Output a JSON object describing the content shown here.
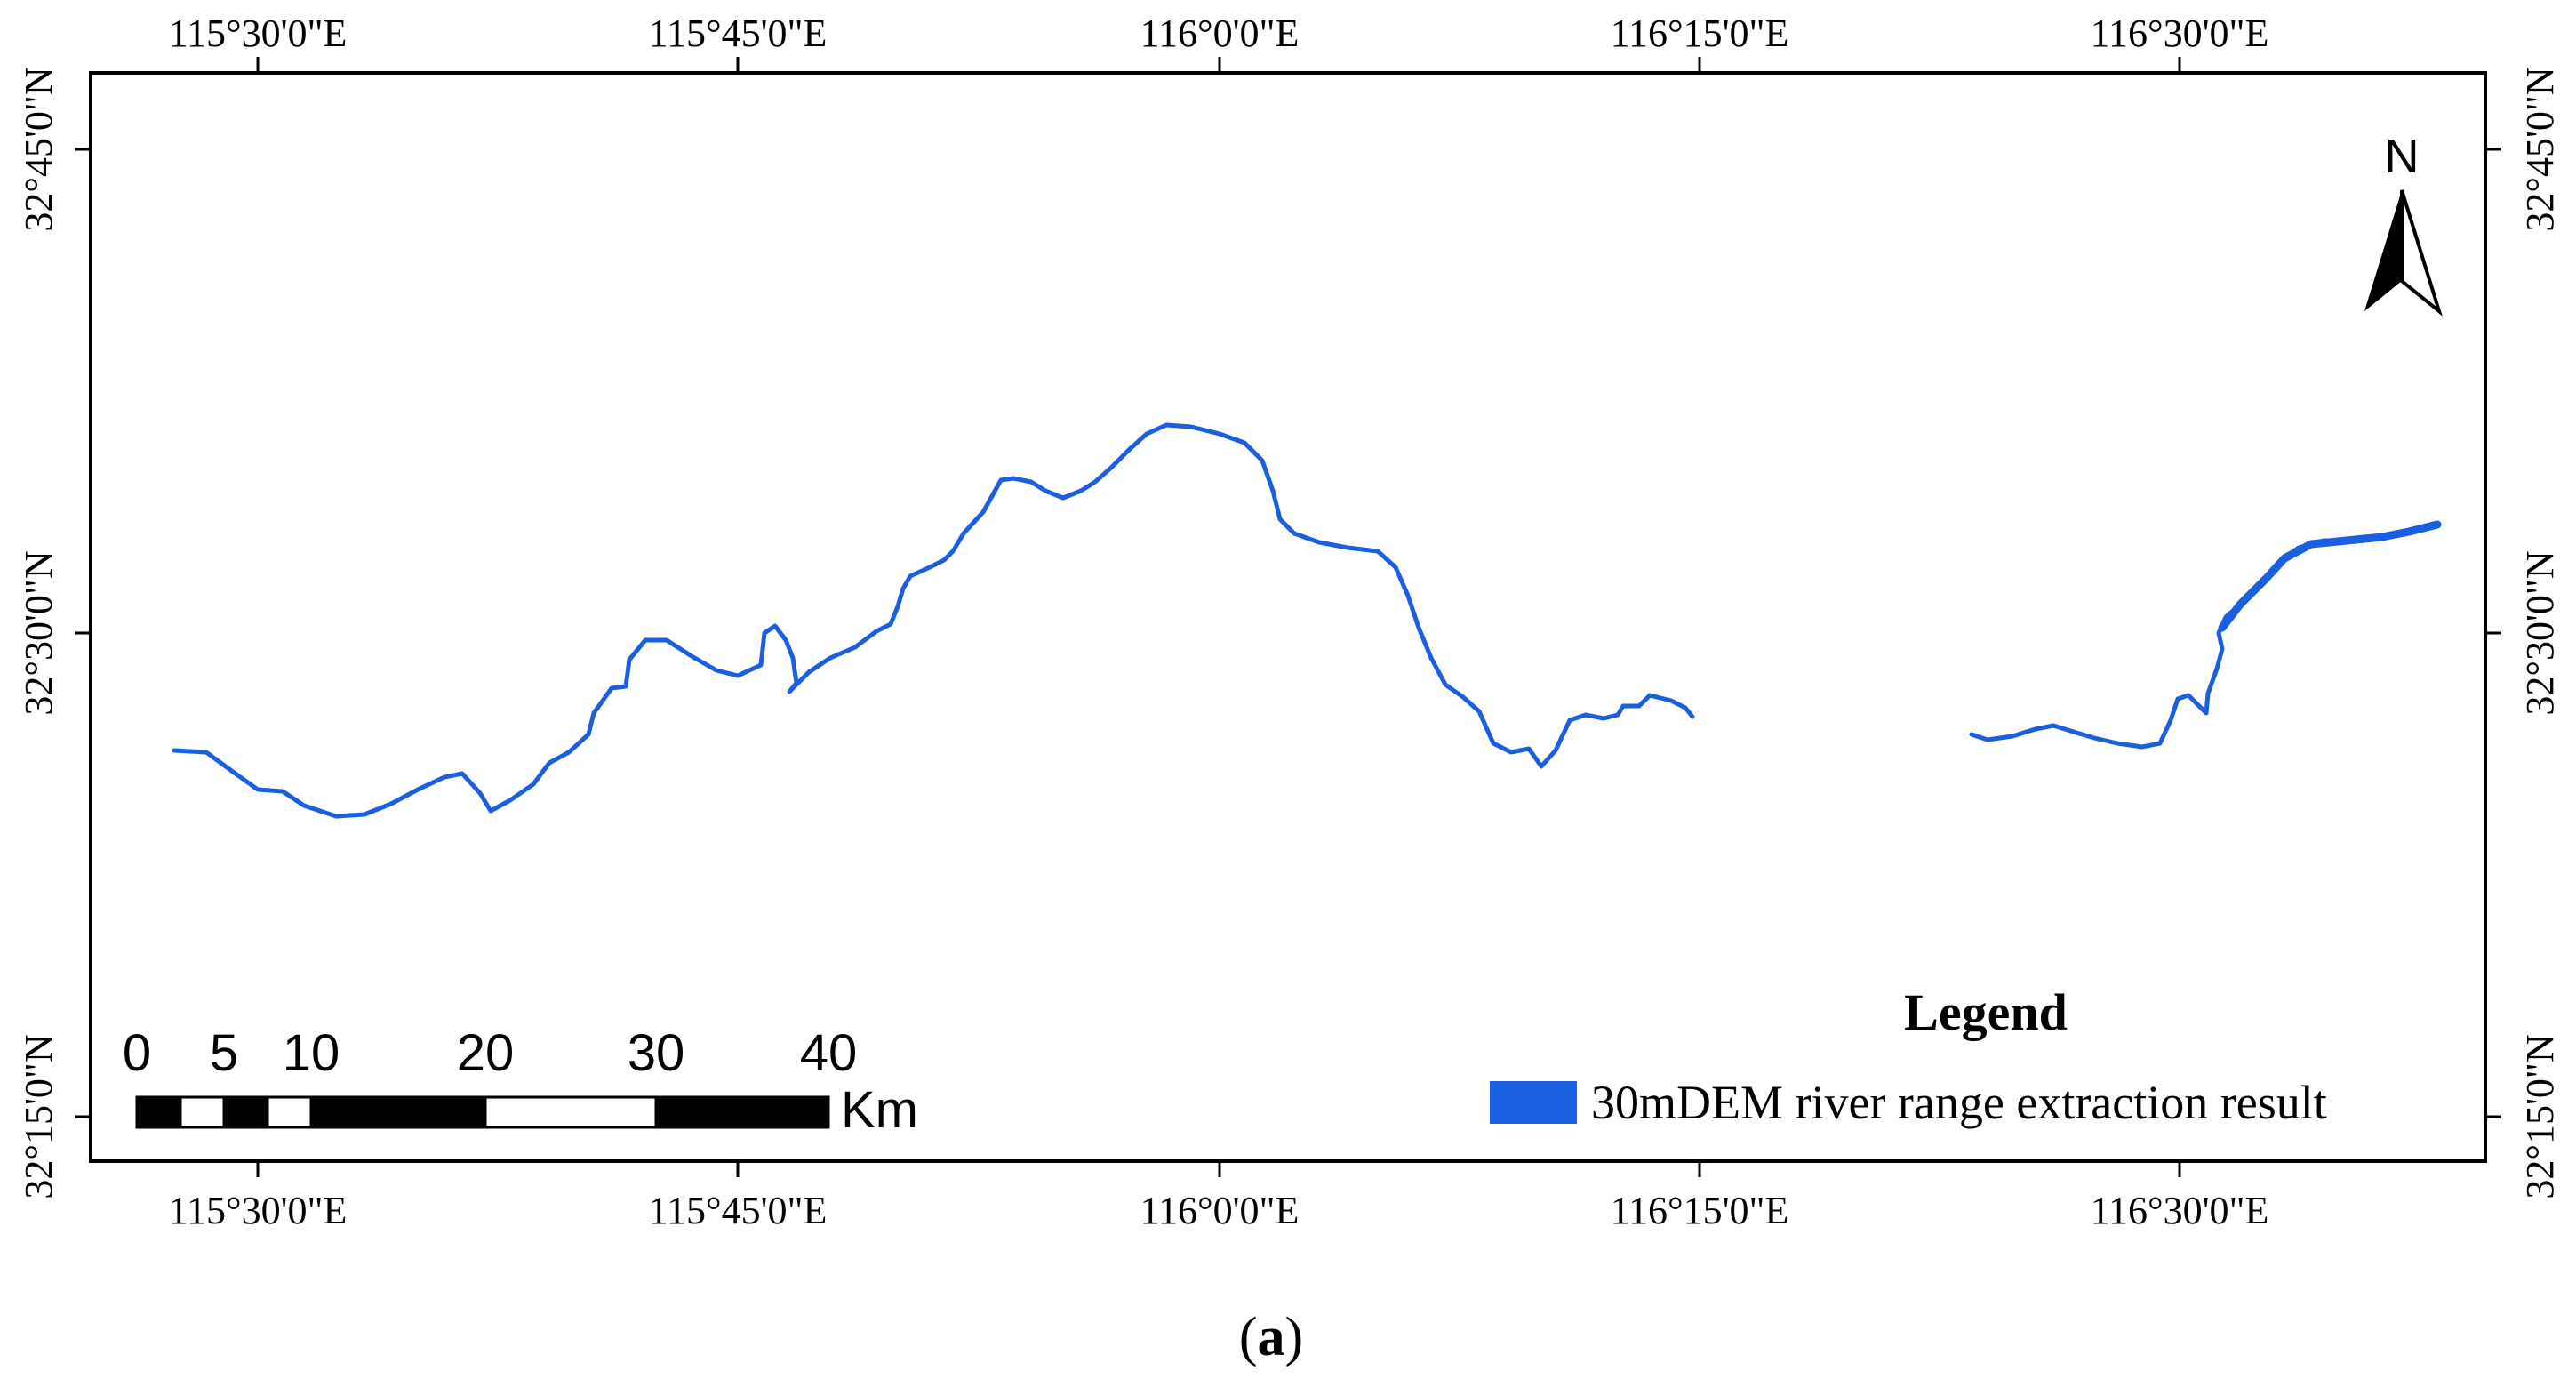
{
  "map": {
    "colors": {
      "river": "#1a5fe0",
      "frame": "#000000",
      "background": "#ffffff"
    },
    "axes": {
      "longitude_ticks": [
        "115°30'0\"E",
        "115°45'0\"E",
        "116°0'0\"E",
        "116°15'0\"E",
        "116°30'0\"E"
      ],
      "latitude_ticks": [
        "32°45'0\"N",
        "32°30'0\"N",
        "32°15'0\"N"
      ]
    },
    "north_arrow": {
      "letter": "N",
      "icon": "north-arrow-icon"
    },
    "scale_bar": {
      "labels": [
        "0",
        "5",
        "10",
        "20",
        "30",
        "40"
      ],
      "unit": "Km"
    },
    "legend": {
      "title": "Legend",
      "items": [
        {
          "label": "30mDEM river range extraction result",
          "color": "#1a5fe0"
        }
      ]
    }
  },
  "caption": {
    "open_paren": "(",
    "letter": "a",
    "close_paren": ")"
  }
}
